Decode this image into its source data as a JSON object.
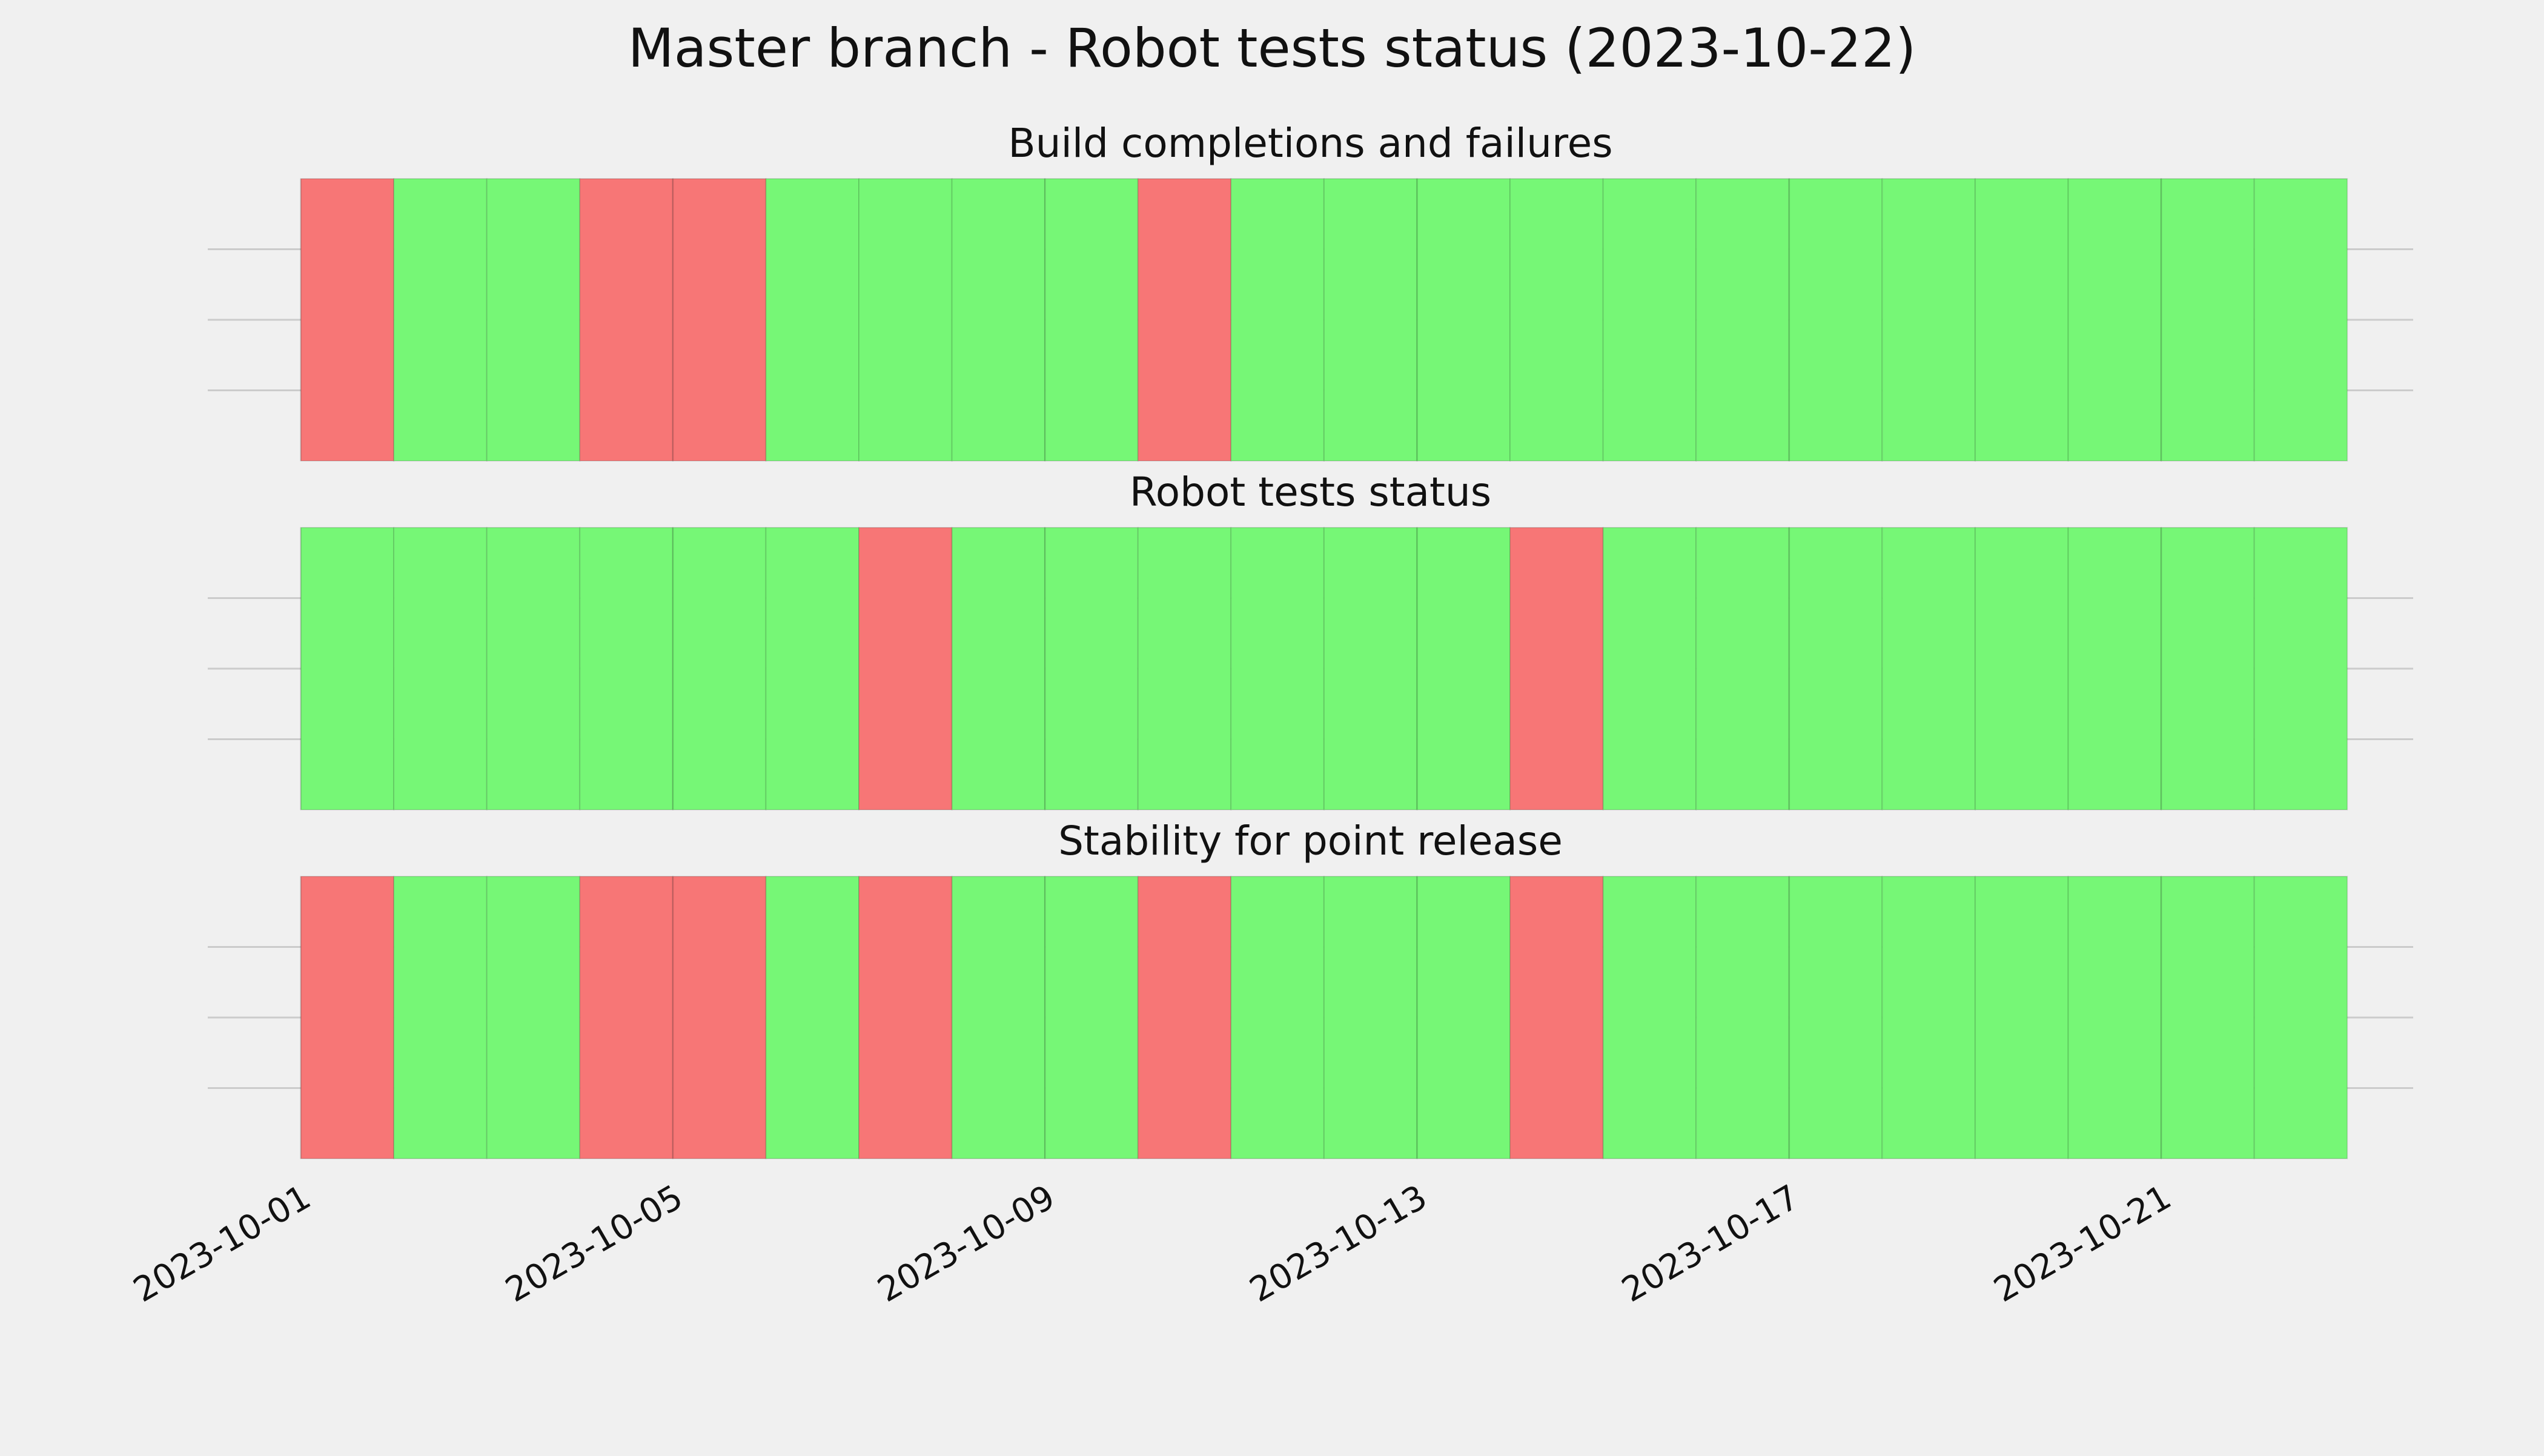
{
  "title": "Master branch - Robot tests status (2023-10-22)",
  "chart_data": [
    {
      "type": "bar",
      "title": "Build completions and failures",
      "x": [
        "2023-10-01",
        "2023-10-02",
        "2023-10-03",
        "2023-10-04",
        "2023-10-05",
        "2023-10-06",
        "2023-10-07",
        "2023-10-08",
        "2023-10-09",
        "2023-10-10",
        "2023-10-11",
        "2023-10-12",
        "2023-10-13",
        "2023-10-14",
        "2023-10-15",
        "2023-10-16",
        "2023-10-17",
        "2023-10-18",
        "2023-10-19",
        "2023-10-20",
        "2023-10-21",
        "2023-10-22"
      ],
      "values": [
        1,
        1,
        1,
        1,
        1,
        1,
        1,
        1,
        1,
        1,
        1,
        1,
        1,
        1,
        1,
        1,
        1,
        1,
        1,
        1,
        1,
        1
      ],
      "colors": [
        "#f77676",
        "#76f776",
        "#76f776",
        "#f77676",
        "#f77676",
        "#76f776",
        "#76f776",
        "#76f776",
        "#76f776",
        "#f77676",
        "#76f776",
        "#76f776",
        "#76f776",
        "#76f776",
        "#76f776",
        "#76f776",
        "#76f776",
        "#76f776",
        "#76f776",
        "#76f776",
        "#76f776",
        "#76f776"
      ],
      "xlim": [
        "2023-09-30T00:00Z",
        "2023-10-23T17:00Z"
      ],
      "ylim": [
        0,
        1
      ],
      "yticks": [
        0.25,
        0.5,
        0.75
      ],
      "grid": true
    },
    {
      "type": "bar",
      "title": "Robot tests status",
      "x": [
        "2023-10-01",
        "2023-10-02",
        "2023-10-03",
        "2023-10-04",
        "2023-10-05",
        "2023-10-06",
        "2023-10-07",
        "2023-10-08",
        "2023-10-09",
        "2023-10-10",
        "2023-10-11",
        "2023-10-12",
        "2023-10-13",
        "2023-10-14",
        "2023-10-15",
        "2023-10-16",
        "2023-10-17",
        "2023-10-18",
        "2023-10-19",
        "2023-10-20",
        "2023-10-21",
        "2023-10-22"
      ],
      "values": [
        1,
        1,
        1,
        1,
        1,
        1,
        1,
        1,
        1,
        1,
        1,
        1,
        1,
        1,
        1,
        1,
        1,
        1,
        1,
        1,
        1,
        1
      ],
      "colors": [
        "#76f776",
        "#76f776",
        "#76f776",
        "#76f776",
        "#76f776",
        "#76f776",
        "#f77676",
        "#76f776",
        "#76f776",
        "#76f776",
        "#76f776",
        "#76f776",
        "#76f776",
        "#f77676",
        "#76f776",
        "#76f776",
        "#76f776",
        "#76f776",
        "#76f776",
        "#76f776",
        "#76f776",
        "#76f776"
      ],
      "xlim": [
        "2023-09-30T00:00Z",
        "2023-10-23T17:00Z"
      ],
      "ylim": [
        0,
        1
      ],
      "yticks": [
        0.25,
        0.5,
        0.75
      ],
      "grid": true
    },
    {
      "type": "bar",
      "title": "Stability for point release",
      "x": [
        "2023-10-01",
        "2023-10-02",
        "2023-10-03",
        "2023-10-04",
        "2023-10-05",
        "2023-10-06",
        "2023-10-07",
        "2023-10-08",
        "2023-10-09",
        "2023-10-10",
        "2023-10-11",
        "2023-10-12",
        "2023-10-13",
        "2023-10-14",
        "2023-10-15",
        "2023-10-16",
        "2023-10-17",
        "2023-10-18",
        "2023-10-19",
        "2023-10-20",
        "2023-10-21",
        "2023-10-22"
      ],
      "values": [
        1,
        1,
        1,
        1,
        1,
        1,
        1,
        1,
        1,
        1,
        1,
        1,
        1,
        1,
        1,
        1,
        1,
        1,
        1,
        1,
        1,
        1
      ],
      "colors": [
        "#f77676",
        "#76f776",
        "#76f776",
        "#f77676",
        "#f77676",
        "#76f776",
        "#f77676",
        "#76f776",
        "#76f776",
        "#f77676",
        "#76f776",
        "#76f776",
        "#76f776",
        "#f77676",
        "#76f776",
        "#76f776",
        "#76f776",
        "#76f776",
        "#76f776",
        "#76f776",
        "#76f776",
        "#76f776"
      ],
      "xlim": [
        "2023-09-30T00:00Z",
        "2023-10-23T17:00Z"
      ],
      "ylim": [
        0,
        1
      ],
      "yticks": [
        0.25,
        0.5,
        0.75
      ],
      "grid": true,
      "xticks": [
        "2023-10-01",
        "2023-10-05",
        "2023-10-09",
        "2023-10-13",
        "2023-10-17",
        "2023-10-21"
      ]
    }
  ]
}
